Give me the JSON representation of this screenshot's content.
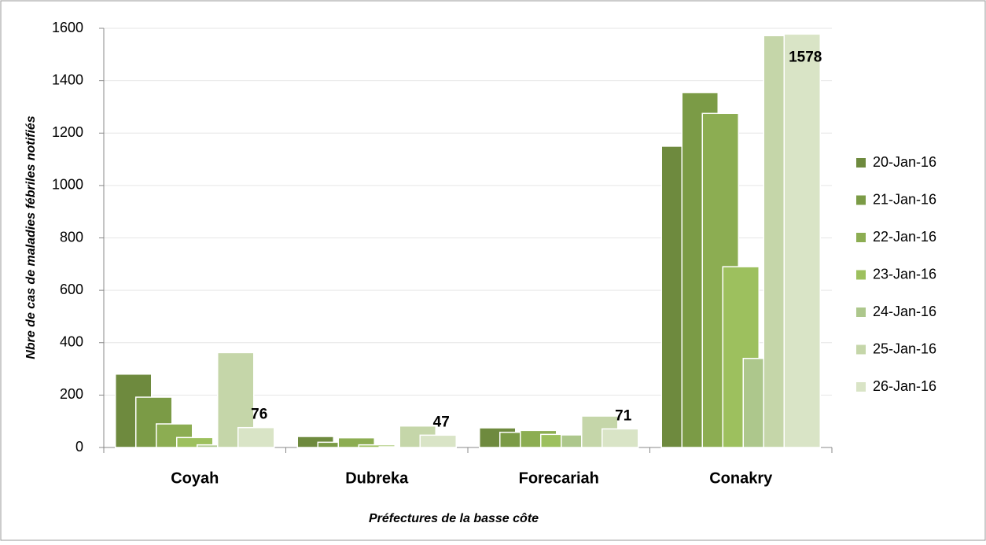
{
  "chart_data": {
    "type": "bar",
    "x_label": "Préfectures de la basse côte",
    "y_label": "Nbre de cas de maladies fébriles notifiés",
    "categories": [
      "Coyah",
      "Dubreka",
      "Forecariah",
      "Conakry"
    ],
    "series": [
      {
        "name": "20-Jan-16",
        "color": "#6e8a3e",
        "values": [
          280,
          42,
          75,
          1150
        ]
      },
      {
        "name": "21-Jan-16",
        "color": "#7b9b46",
        "values": [
          192,
          20,
          58,
          1355
        ]
      },
      {
        "name": "22-Jan-16",
        "color": "#8cad52",
        "values": [
          90,
          37,
          65,
          1275
        ]
      },
      {
        "name": "23-Jan-16",
        "color": "#9dc05e",
        "values": [
          38,
          10,
          50,
          690
        ]
      },
      {
        "name": "24-Jan-16",
        "color": "#adc78c",
        "values": [
          10,
          3,
          48,
          340
        ]
      },
      {
        "name": "25-Jan-16",
        "color": "#c5d6a9",
        "values": [
          362,
          82,
          120,
          1572
        ]
      },
      {
        "name": "26-Jan-16",
        "color": "#d9e4c6",
        "values": [
          76,
          47,
          71,
          1578
        ],
        "data_labels": true
      }
    ],
    "ylim": [
      0,
      1600
    ],
    "yticks": [
      0,
      200,
      400,
      600,
      800,
      1000,
      1200,
      1400,
      1600
    ],
    "grid": true,
    "legend": "right"
  }
}
